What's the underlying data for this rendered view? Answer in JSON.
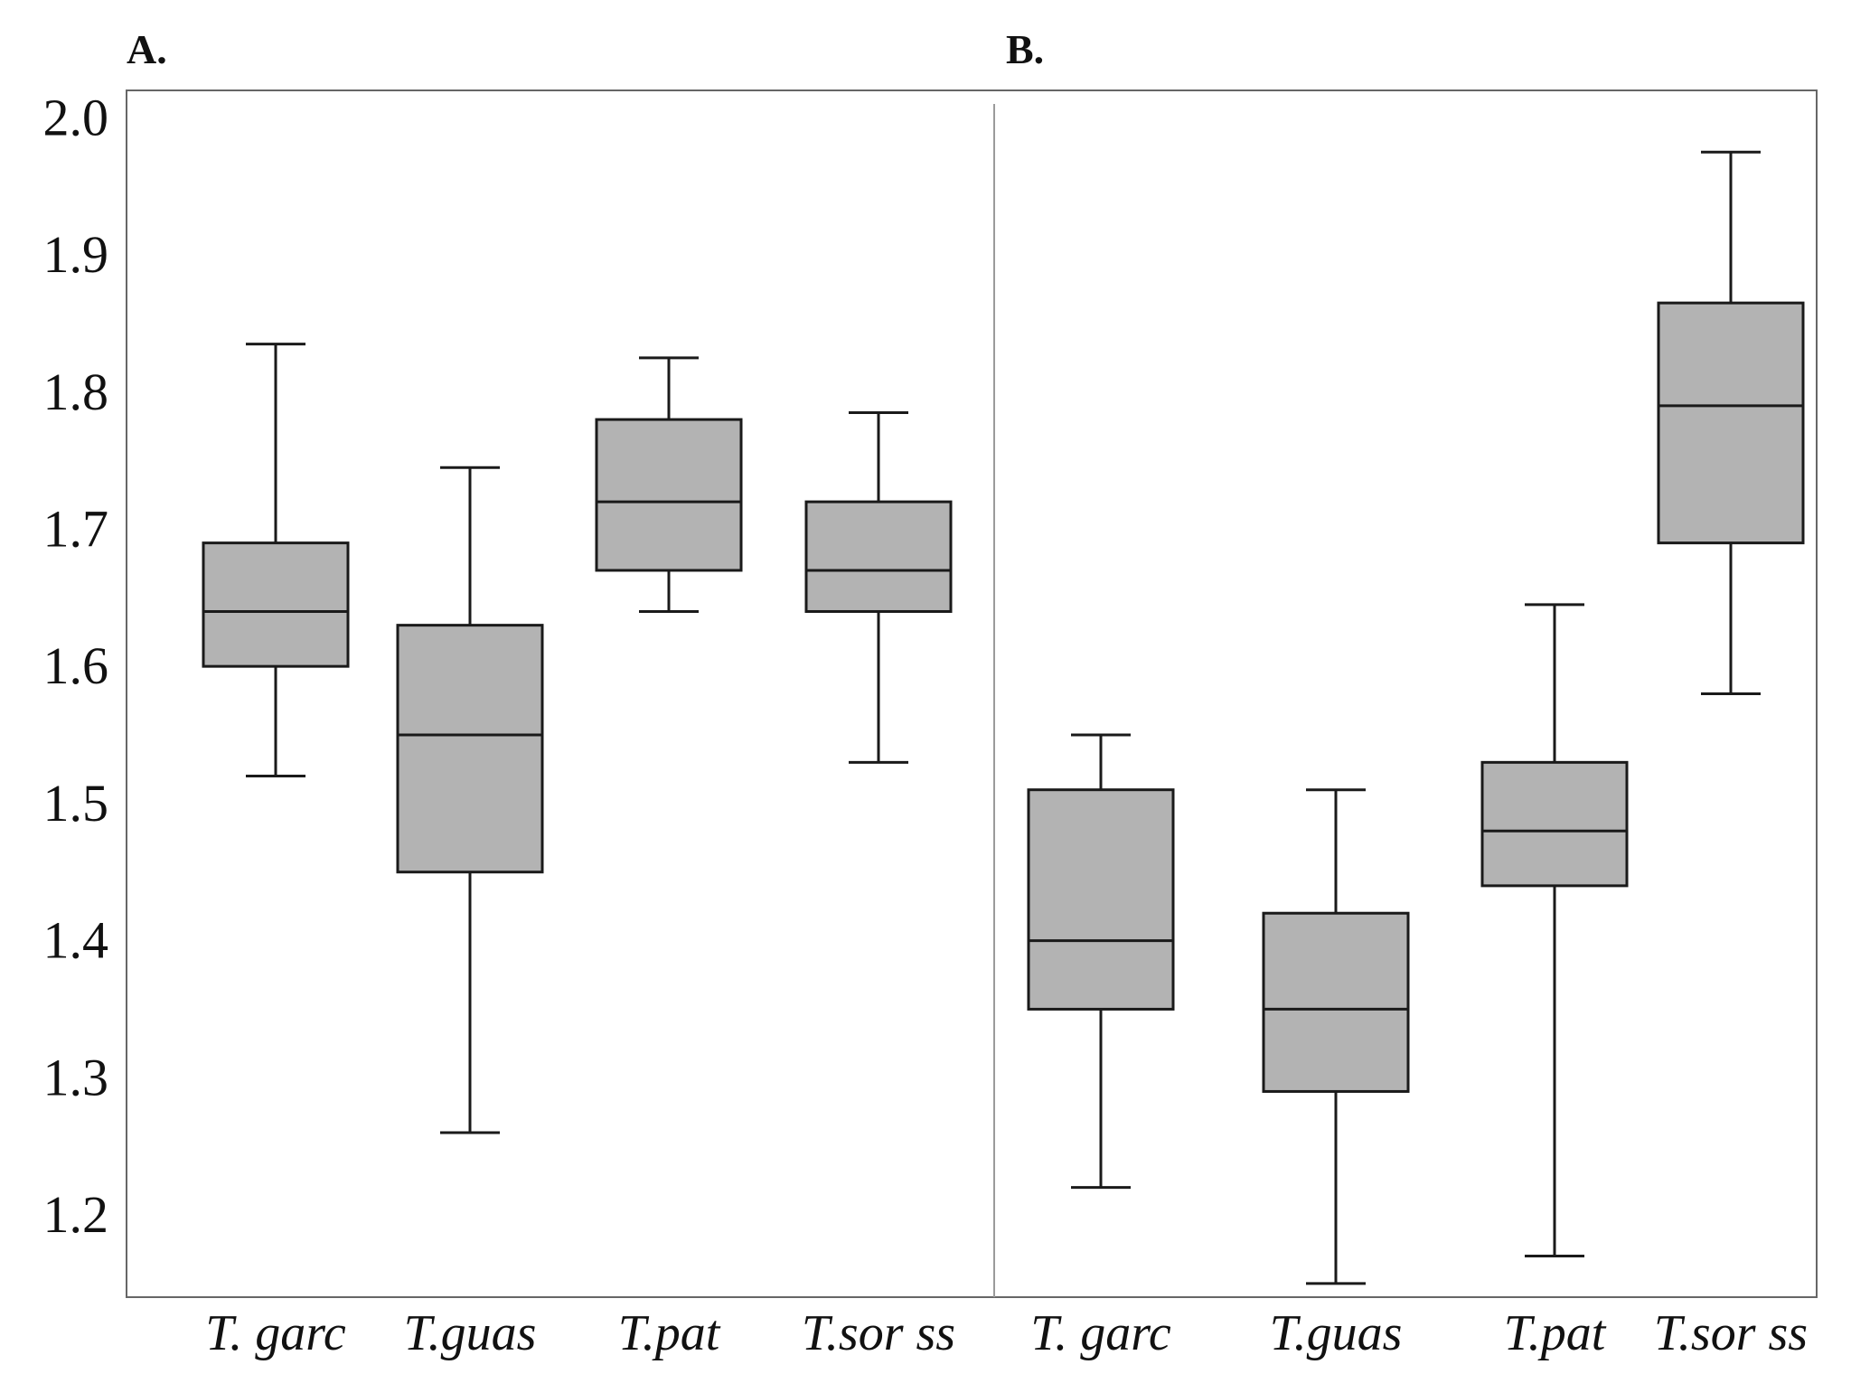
{
  "chart_data": {
    "type": "box",
    "y_ticks": [
      "2.0",
      "1.9",
      "1.8",
      "1.7",
      "1.6",
      "1.5",
      "1.4",
      "1.3",
      "1.2"
    ],
    "ylim": [
      1.14,
      2.02
    ],
    "grid": false,
    "box_color": "#b3b3b3",
    "panels": [
      {
        "label": "A.",
        "categories": [
          "T. garc",
          "T.guas",
          "T.pat",
          "T.sor ss"
        ],
        "boxes": [
          {
            "whisker_low": 1.52,
            "q1": 1.6,
            "median": 1.64,
            "q3": 1.69,
            "whisker_high": 1.835
          },
          {
            "whisker_low": 1.26,
            "q1": 1.45,
            "median": 1.55,
            "q3": 1.63,
            "whisker_high": 1.745
          },
          {
            "whisker_low": 1.64,
            "q1": 1.67,
            "median": 1.72,
            "q3": 1.78,
            "whisker_high": 1.825
          },
          {
            "whisker_low": 1.53,
            "q1": 1.64,
            "median": 1.67,
            "q3": 1.72,
            "whisker_high": 1.785
          }
        ]
      },
      {
        "label": "B.",
        "categories": [
          "T. garc",
          "T.guas",
          "T.pat",
          "T.sor ss"
        ],
        "boxes": [
          {
            "whisker_low": 1.22,
            "q1": 1.35,
            "median": 1.4,
            "q3": 1.51,
            "whisker_high": 1.55
          },
          {
            "whisker_low": 1.15,
            "q1": 1.29,
            "median": 1.35,
            "q3": 1.42,
            "whisker_high": 1.51
          },
          {
            "whisker_low": 1.17,
            "q1": 1.44,
            "median": 1.48,
            "q3": 1.53,
            "whisker_high": 1.645
          },
          {
            "whisker_low": 1.58,
            "q1": 1.69,
            "median": 1.79,
            "q3": 1.865,
            "whisker_high": 1.975
          }
        ]
      }
    ]
  }
}
